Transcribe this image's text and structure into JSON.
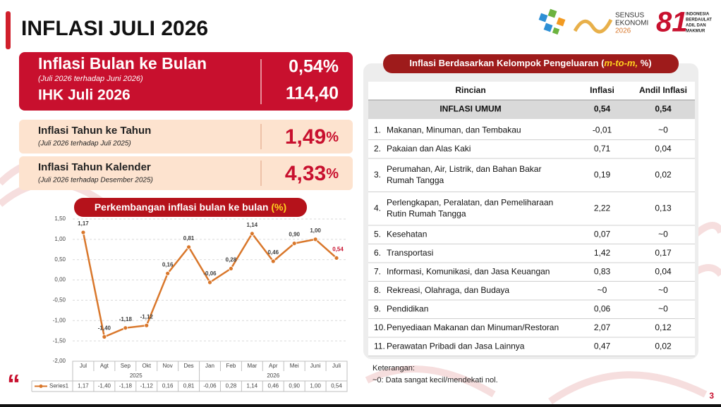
{
  "header": {
    "title": "INFLASI JULI 2026"
  },
  "logos": {
    "sensus": [
      "SENSUS",
      "EKONOMI",
      "2026"
    ],
    "anniversary": "81",
    "motto": [
      "INDONESIA",
      "BERDAULAT",
      "ADIL DAN",
      "MAKMUR"
    ]
  },
  "mtm": {
    "title": "Inflasi Bulan ke Bulan",
    "subtitle": "(Juli 2026 terhadap Juni 2026)",
    "value": "0,54%",
    "ihk_label": "IHK Juli 2026",
    "ihk_value": "114,40"
  },
  "yoy": {
    "title": "Inflasi Tahun ke Tahun",
    "subtitle": "(Juli 2026 terhadap Juli 2025)",
    "value": "1,49",
    "unit": "%"
  },
  "ytd": {
    "title": "Inflasi Tahun Kalender",
    "subtitle": "(Juli 2026 terhadap Desember 2025)",
    "value": "4,33",
    "unit": "%"
  },
  "chart_data": {
    "type": "line",
    "title": "Perkembangan inflasi bulan ke bulan",
    "title_unit": "(%)",
    "categories": [
      "Jul",
      "Agt",
      "Sep",
      "Okt",
      "Nov",
      "Des",
      "Jan",
      "Feb",
      "Mar",
      "Apr",
      "Mei",
      "Juni",
      "Juli"
    ],
    "x_groups": [
      "2025",
      "2026"
    ],
    "series": [
      {
        "name": "Series1",
        "color": "#d9772b",
        "values": [
          1.17,
          -1.4,
          -1.18,
          -1.12,
          0.16,
          0.81,
          -0.06,
          0.28,
          1.14,
          0.46,
          0.9,
          1.0,
          0.54
        ],
        "value_labels": [
          "1,17",
          "-1,40",
          "-1,18",
          "-1,12",
          "0,16",
          "0,81",
          "-0,06",
          "0,28",
          "1,14",
          "0,46",
          "0,90",
          "1,00",
          "0,54"
        ]
      }
    ],
    "ylim": [
      -2,
      1.5
    ],
    "yticks": [
      {
        "value": 1.5,
        "label": "1,50"
      },
      {
        "value": 1,
        "label": "1,00"
      },
      {
        "value": 0.5,
        "label": "0,50"
      },
      {
        "value": 0,
        "label": "0,00"
      },
      {
        "value": -0.5,
        "label": "-0,50"
      },
      {
        "value": -1,
        "label": "-1,00"
      },
      {
        "value": -1.5,
        "label": "-1,50"
      },
      {
        "value": -2,
        "label": "-2,00"
      }
    ],
    "grid": true
  },
  "table": {
    "title": [
      "Inflasi Berdasarkan Kelompok Pengeluaran (",
      "m-to-m,",
      " %)"
    ],
    "columns": [
      "Rincian",
      "Inflasi",
      "Andil Inflasi"
    ],
    "total": [
      "INFLASI UMUM",
      "0,54",
      "0,54"
    ],
    "rows": [
      {
        "no": "1.",
        "lines": [
          "Makanan, Minuman, dan Tembakau"
        ],
        "inflasi": "-0,01",
        "andil": "~0"
      },
      {
        "no": "2.",
        "lines": [
          "Pakaian dan Alas Kaki"
        ],
        "inflasi": "0,71",
        "andil": "0,04"
      },
      {
        "no": "3.",
        "lines": [
          "Perumahan, Air, Listrik, dan Bahan Bakar",
          "Rumah Tangga"
        ],
        "inflasi": "0,19",
        "andil": "0,02"
      },
      {
        "no": "4.",
        "lines": [
          "Perlengkapan, Peralatan, dan Pemeliharaan",
          "Rutin Rumah Tangga"
        ],
        "inflasi": "2,22",
        "andil": "0,13"
      },
      {
        "no": "5.",
        "lines": [
          "Kesehatan"
        ],
        "inflasi": "0,07",
        "andil": "~0"
      },
      {
        "no": "6.",
        "lines": [
          "Transportasi"
        ],
        "inflasi": "1,42",
        "andil": "0,17"
      },
      {
        "no": "7.",
        "lines": [
          "Informasi, Komunikasi, dan Jasa Keuangan"
        ],
        "inflasi": "0,83",
        "andil": "0,04"
      },
      {
        "no": "8.",
        "lines": [
          "Rekreasi, Olahraga, dan Budaya"
        ],
        "inflasi": "~0",
        "andil": "~0"
      },
      {
        "no": "9.",
        "lines": [
          "Pendidikan"
        ],
        "inflasi": "0,06",
        "andil": "~0"
      },
      {
        "no": "10.",
        "lines": [
          "Penyediaan Makanan dan Minuman/Restoran"
        ],
        "inflasi": "2,07",
        "andil": "0,12"
      },
      {
        "no": "11.",
        "lines": [
          "Perawatan Pribadi dan Jasa Lainnya"
        ],
        "inflasi": "0,47",
        "andil": "0,02"
      }
    ]
  },
  "notes": [
    "Keterangan:",
    "~0: Data sangat kecil/mendekati nol."
  ],
  "page_number": "3"
}
